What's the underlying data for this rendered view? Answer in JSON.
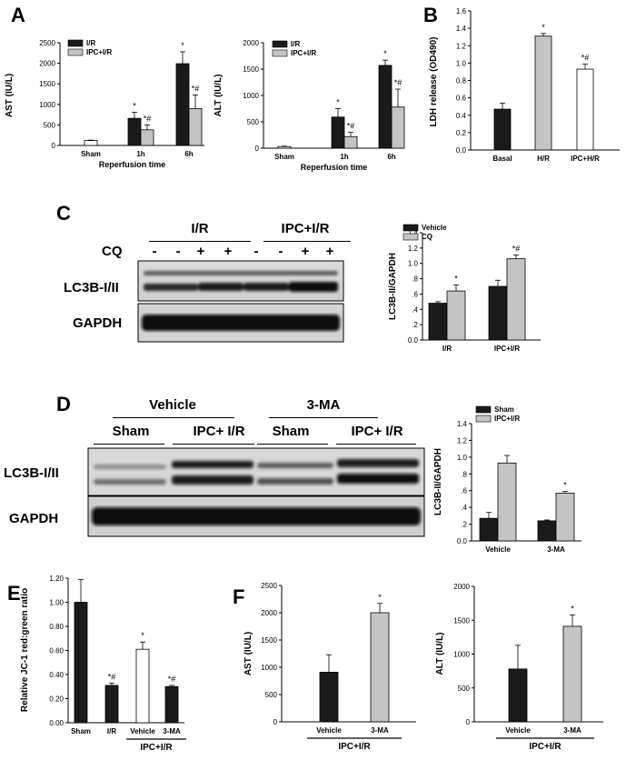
{
  "panels": {
    "A": "A",
    "B": "B",
    "C": "C",
    "D": "D",
    "E": "E",
    "F": "F"
  },
  "colors": {
    "black_bar": "#1a1a1a",
    "gray_bar": "#c4c4c4",
    "white_bar": "#ffffff"
  },
  "panel_C": {
    "groups": [
      "I/R",
      "IPC+I/R"
    ],
    "cq_label": "CQ",
    "cq_signs": [
      "-",
      "-",
      "+",
      "+",
      "-",
      "-",
      "+",
      "+"
    ],
    "blot_labels": [
      "LC3B-I/II",
      "GAPDH"
    ]
  },
  "panel_D": {
    "treatments": [
      "Vehicle",
      "3-MA"
    ],
    "subgroups": [
      "Sham",
      "IPC+ I/R",
      "Sham",
      "IPC+ I/R"
    ],
    "blot_labels": [
      "LC3B-I/II",
      "GAPDH"
    ]
  },
  "chart_data": [
    {
      "id": "A-AST",
      "type": "bar",
      "categories": [
        "Sham",
        "1h",
        "6h"
      ],
      "series": [
        {
          "name": "I/R",
          "values": [
            120,
            660,
            1990
          ],
          "errors": [
            10,
            150,
            290
          ],
          "sig": [
            "",
            "*",
            "*"
          ]
        },
        {
          "name": "IPC+I/R",
          "values": [
            null,
            380,
            900
          ],
          "errors": [
            null,
            120,
            330
          ],
          "sig": [
            "",
            "*#",
            "*#"
          ]
        }
      ],
      "ylabel": "AST (IU/L)",
      "xlabel": "Reperfusion time",
      "ylim": [
        0,
        2500
      ],
      "yticks": [
        0,
        500,
        1000,
        1500,
        2000,
        2500
      ],
      "legend": "top-left"
    },
    {
      "id": "A-ALT",
      "type": "bar",
      "categories": [
        "Sham",
        "1h",
        "6h"
      ],
      "series": [
        {
          "name": "I/R",
          "values": [
            30,
            590,
            1570
          ],
          "errors": [
            8,
            160,
            100
          ],
          "sig": [
            "",
            "*",
            "*"
          ]
        },
        {
          "name": "IPC+I/R",
          "values": [
            null,
            220,
            780
          ],
          "errors": [
            null,
            80,
            340
          ],
          "sig": [
            "",
            "*#",
            "*#"
          ]
        }
      ],
      "ylabel": "ALT (IU/L)",
      "xlabel": "Reperfusion time",
      "ylim": [
        0,
        2000
      ],
      "yticks": [
        0,
        500,
        1000,
        1500,
        2000
      ],
      "legend": "top-left"
    },
    {
      "id": "B-LDH",
      "type": "bar",
      "categories": [
        "Basal",
        "H/R",
        "IPC+H/R"
      ],
      "values": [
        0.47,
        1.31,
        0.93
      ],
      "errors": [
        0.07,
        0.03,
        0.06
      ],
      "sig": [
        "",
        "*",
        "*#"
      ],
      "fills": [
        "black",
        "gray",
        "white"
      ],
      "ylabel": "LDH release (OD490)",
      "ylim": [
        0,
        1.6
      ],
      "yticks": [
        "0.0",
        "0.2",
        "0.4",
        "0.6",
        "0.8",
        "1.0",
        "1.2",
        "1.4",
        "1.6"
      ]
    },
    {
      "id": "C-LC3",
      "type": "bar",
      "categories": [
        "I/R",
        "IPC+I/R"
      ],
      "series": [
        {
          "name": "Vehicle",
          "values": [
            0.48,
            0.7
          ],
          "errors": [
            0.02,
            0.08
          ],
          "sig": [
            "",
            ""
          ]
        },
        {
          "name": "CQ",
          "values": [
            0.64,
            1.06
          ],
          "errors": [
            0.08,
            0.05
          ],
          "sig": [
            "*",
            "*#"
          ]
        }
      ],
      "ylabel": "LC3B-II/GAPDH",
      "ylim": [
        0,
        1.4
      ],
      "yticks": [
        "0.0",
        ".2",
        ".4",
        ".6",
        ".8",
        "1.0",
        "1.2",
        "1.4"
      ],
      "legend": "top-left"
    },
    {
      "id": "D-LC3",
      "type": "bar",
      "categories": [
        "Vehicle",
        "3-MA"
      ],
      "series": [
        {
          "name": "Sham",
          "values": [
            0.27,
            0.24
          ],
          "errors": [
            0.07,
            0.01
          ],
          "sig": [
            "",
            ""
          ]
        },
        {
          "name": "IPC+I/R",
          "values": [
            0.93,
            0.57
          ],
          "errors": [
            0.09,
            0.02
          ],
          "sig": [
            "",
            "*"
          ]
        }
      ],
      "ylabel": "LC3B-II/GAPDH",
      "ylim": [
        0,
        1.4
      ],
      "yticks": [
        "0.0",
        ".2",
        ".4",
        ".6",
        ".8",
        "1.0",
        "1.2",
        "1.4"
      ],
      "legend": "top-left"
    },
    {
      "id": "E-JC1",
      "type": "bar",
      "categories": [
        "Sham",
        "I/R",
        "Vehicle",
        "3-MA"
      ],
      "values": [
        1.0,
        0.31,
        0.61,
        0.3
      ],
      "errors": [
        0.19,
        0.02,
        0.06,
        0.01
      ],
      "sig": [
        "",
        "*#",
        "*",
        "*#"
      ],
      "fills": [
        "black",
        "black",
        "white",
        "black"
      ],
      "group_label": "IPC+I/R",
      "ylabel": "Relative JC-1 red:green ratio",
      "ylim": [
        0,
        1.2
      ],
      "yticks": [
        "0.00",
        "0.20",
        "0.40",
        "0.60",
        "0.80",
        "1.00",
        "1.20"
      ]
    },
    {
      "id": "F-AST",
      "type": "bar",
      "categories": [
        "Vehicle",
        "3-MA"
      ],
      "values": [
        910,
        2000
      ],
      "errors": [
        320,
        170
      ],
      "sig": [
        "",
        "*"
      ],
      "fills": [
        "black",
        "gray"
      ],
      "group_label": "IPC+I/R",
      "ylabel": "AST (IU/L)",
      "ylim": [
        0,
        2500
      ],
      "yticks": [
        "0",
        "500",
        "1000",
        "1500",
        "2000",
        "2500"
      ]
    },
    {
      "id": "F-ALT",
      "type": "bar",
      "categories": [
        "Vehicle",
        "3-MA"
      ],
      "values": [
        780,
        1410
      ],
      "errors": [
        350,
        170
      ],
      "sig": [
        "",
        "*"
      ],
      "fills": [
        "black",
        "gray"
      ],
      "group_label": "IPC+I/R",
      "ylabel": "ALT (IU/L)",
      "ylim": [
        0,
        2000
      ],
      "yticks": [
        "0",
        "500",
        "1000",
        "1500",
        "2000"
      ]
    }
  ]
}
